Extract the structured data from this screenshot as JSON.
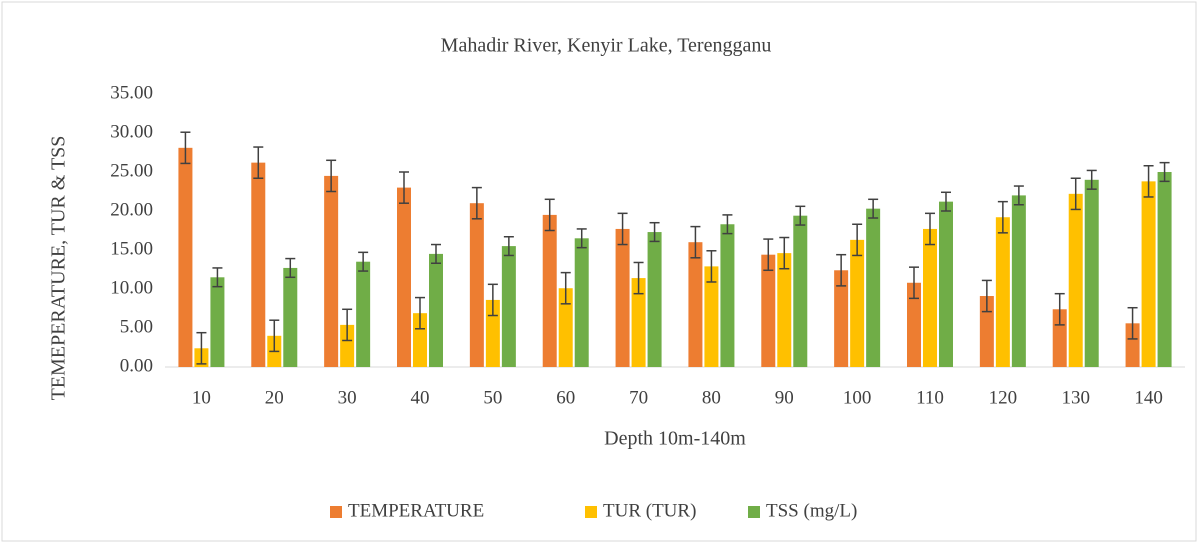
{
  "chart_data": {
    "type": "bar",
    "title": "Mahadir River, Kenyir Lake, Terengganu",
    "x_label": "Depth 10m-140m",
    "y_label": "TEMEPERATURE, TUR & TSS",
    "categories": [
      "10",
      "20",
      "30",
      "40",
      "50",
      "60",
      "70",
      "80",
      "90",
      "100",
      "110",
      "120",
      "130",
      "140"
    ],
    "series": [
      {
        "name": "TEMPERATURE",
        "color": "#ed7d31",
        "values": [
          28.1,
          26.2,
          24.5,
          23.0,
          21.0,
          19.5,
          17.7,
          16.0,
          14.4,
          12.4,
          10.8,
          9.1,
          7.4,
          5.6
        ],
        "errors": [
          2,
          2,
          2,
          2,
          2,
          2,
          2,
          2,
          2,
          2,
          2,
          2,
          2,
          2
        ]
      },
      {
        "name": "TUR (TUR)",
        "color": "#ffc000",
        "values": [
          2.4,
          4.0,
          5.4,
          6.9,
          8.6,
          10.1,
          11.4,
          12.9,
          14.6,
          16.3,
          17.7,
          19.2,
          22.2,
          23.8
        ],
        "errors": [
          2,
          2,
          2,
          2,
          2,
          2,
          2,
          2,
          2,
          2,
          2,
          2,
          2,
          2
        ]
      },
      {
        "name": "TSS (mg/L)",
        "color": "#70ad47",
        "values": [
          11.5,
          12.7,
          13.5,
          14.5,
          15.5,
          16.5,
          17.3,
          18.3,
          19.4,
          20.3,
          21.2,
          22.0,
          24.0,
          25.0
        ],
        "errors": [
          1.2,
          1.2,
          1.2,
          1.2,
          1.2,
          1.2,
          1.2,
          1.2,
          1.2,
          1.2,
          1.2,
          1.2,
          1.2,
          1.2
        ]
      }
    ],
    "ylim": [
      0,
      35
    ],
    "yticks": [
      {
        "value": 0,
        "label": "0.00"
      },
      {
        "value": 5,
        "label": "5.00"
      },
      {
        "value": 10,
        "label": "10.00"
      },
      {
        "value": 15,
        "label": "15.00"
      },
      {
        "value": 20,
        "label": "20.00"
      },
      {
        "value": 25,
        "label": "25.00"
      },
      {
        "value": 30,
        "label": "30.00"
      },
      {
        "value": 35,
        "label": "35.00"
      }
    ],
    "grid": false,
    "legend": "bottom"
  }
}
